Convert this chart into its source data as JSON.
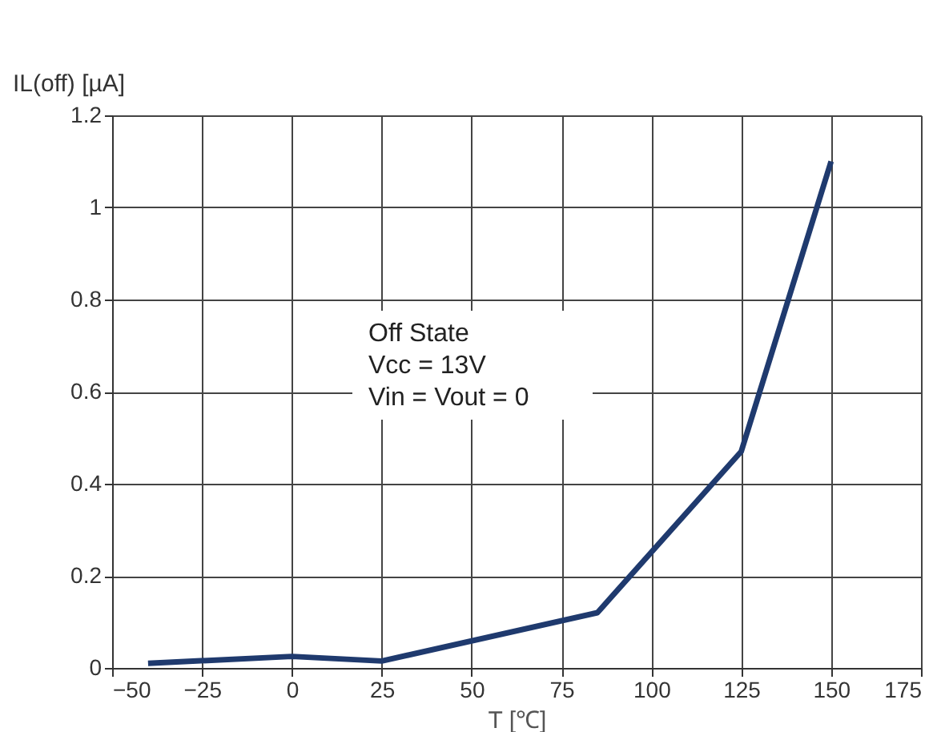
{
  "chart_data": {
    "type": "line",
    "xlabel": "T [℃]",
    "ylabel": "IL(off) [µA]",
    "x": [
      -40,
      0,
      25,
      85,
      125,
      150
    ],
    "series": [
      {
        "color": "#1f3a6e",
        "values": [
          0.01,
          0.025,
          0.015,
          0.12,
          0.47,
          1.1
        ]
      }
    ],
    "xlim": [
      -50,
      175
    ],
    "xticks": [
      -50,
      -25,
      0,
      25,
      50,
      75,
      100,
      125,
      150,
      175
    ],
    "ylim": [
      0,
      1.2
    ],
    "yticks": [
      0,
      0.2,
      0.4,
      0.6,
      0.8,
      1,
      1.2
    ],
    "grid": true,
    "marker": "none",
    "line_style": "solid",
    "annotations": [
      "Off State\nVcc = 13V\nVin = Vout = 0"
    ]
  }
}
